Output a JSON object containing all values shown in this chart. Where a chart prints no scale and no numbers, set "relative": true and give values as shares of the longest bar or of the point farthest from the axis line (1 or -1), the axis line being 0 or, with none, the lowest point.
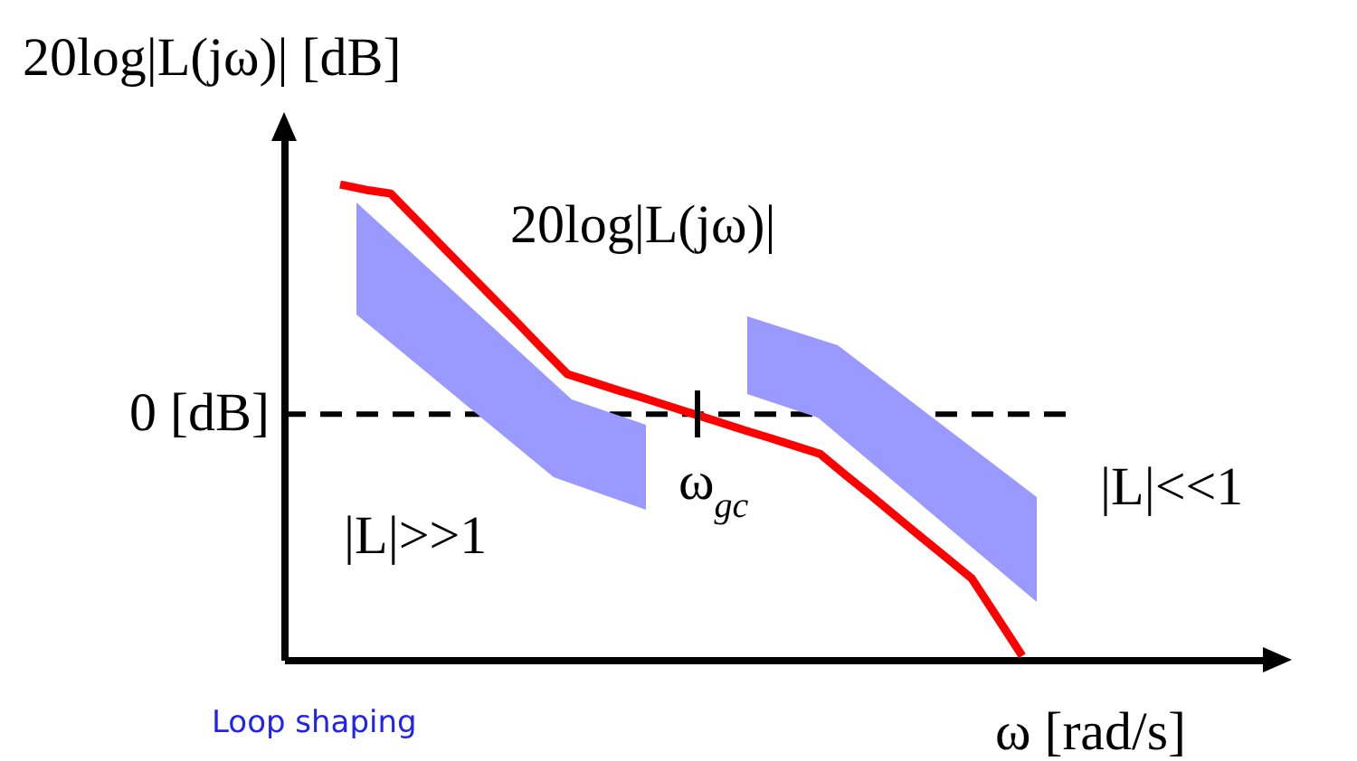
{
  "chart_data": {
    "type": "line",
    "relative": true,
    "ylabel": "20log|L(jω)| [dB]",
    "xlabel": "ω [rad/s]",
    "categories": [
      null,
      null,
      null,
      null,
      null,
      null,
      null,
      null,
      null,
      null,
      null,
      null,
      null,
      null,
      null,
      null,
      null,
      null,
      null,
      null,
      null,
      null,
      null,
      null,
      null,
      null,
      null,
      null
    ],
    "marker": "none",
    "line_style": "solid",
    "series": [
      {
        "color": "#ff0000",
        "values": [
          1,
          0.989,
          0.981,
          0.927,
          0.872,
          0.818,
          0.764,
          0.71,
          0.655,
          0.601,
          0.584,
          0.567,
          0.551,
          0.534,
          0.517,
          0.5,
          0.483,
          0.467,
          0.45,
          0.433,
          0.389,
          0.346,
          0.302,
          0.258,
          0.215,
          0.171,
          0.09,
          0.008
        ]
      }
    ],
    "ref_lines": [
      {
        "axis": "y",
        "value": 0.517,
        "label": "0 [dB]",
        "color": "#000000",
        "line_style": "dashed"
      }
    ],
    "annotations": [
      "20log|L(jω)|",
      "ω$_{gc}$",
      "|L|>>1",
      "|L|<<1",
      "Loop shaping"
    ]
  }
}
